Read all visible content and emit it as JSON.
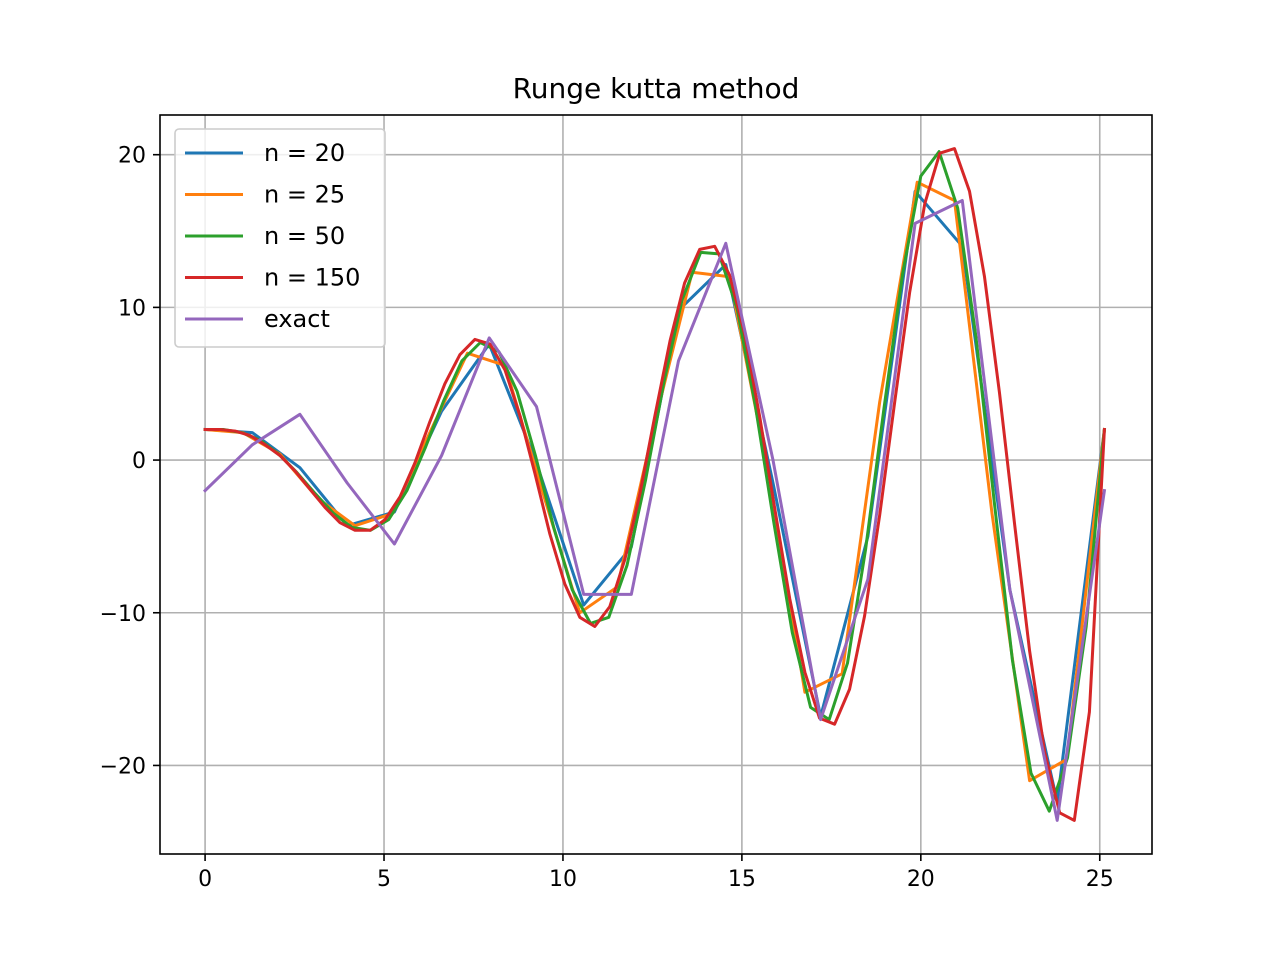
{
  "chart_data": {
    "type": "line",
    "title": "Runge kutta method",
    "xlabel": "",
    "ylabel": "",
    "xlim": [
      -1.26,
      26.46
    ],
    "ylim": [
      -25.8,
      22.6
    ],
    "xticks": [
      0,
      5,
      10,
      15,
      20,
      25
    ],
    "yticks": [
      -20,
      -10,
      0,
      10,
      20
    ],
    "xtick_labels": [
      "0",
      "5",
      "10",
      "15",
      "20",
      "25"
    ],
    "ytick_labels": [
      "−20",
      "−10",
      "0",
      "10",
      "20"
    ],
    "grid": true,
    "legend": "top-left",
    "series": [
      {
        "name": "n = 20",
        "color": "#1f77b4",
        "x": [
          0,
          1.32,
          2.65,
          3.97,
          5.29,
          6.61,
          7.94,
          9.26,
          10.58,
          11.91,
          13.23,
          14.55,
          15.87,
          17.2,
          18.52,
          19.84,
          21.16,
          22.49,
          23.81,
          25.13
        ],
        "y": [
          2.0,
          1.8,
          -0.5,
          -4.3,
          -3.4,
          3.2,
          7.6,
          -0.2,
          -9.5,
          -5.7,
          9.8,
          12.8,
          -1.5,
          -16.8,
          -5.0,
          17.6,
          14.0,
          -8.5,
          -22.4,
          2.0
        ]
      },
      {
        "name": "n = 25",
        "color": "#ff7f0e",
        "x": [
          0,
          1.05,
          2.09,
          3.14,
          4.19,
          5.24,
          6.28,
          7.33,
          8.38,
          9.42,
          10.47,
          11.52,
          12.57,
          13.61,
          14.66,
          15.71,
          16.76,
          17.8,
          18.85,
          19.9,
          20.94,
          21.99,
          23.04,
          24.08,
          25.13
        ],
        "y": [
          2.0,
          1.8,
          0.4,
          -2.5,
          -4.3,
          -3.5,
          1.8,
          7.0,
          6.2,
          -2.0,
          -10.0,
          -8.3,
          2.5,
          12.3,
          12.0,
          -0.5,
          -15.2,
          -14.0,
          3.8,
          18.2,
          17.0,
          -3.5,
          -21.0,
          -19.6,
          2.0
        ]
      },
      {
        "name": "n = 50",
        "color": "#2ca02c",
        "x": [
          0,
          0.51,
          1.03,
          1.54,
          2.05,
          2.56,
          3.08,
          3.59,
          4.1,
          4.62,
          5.13,
          5.64,
          6.15,
          6.67,
          7.18,
          7.69,
          8.21,
          8.72,
          9.23,
          9.74,
          10.26,
          10.77,
          11.28,
          11.79,
          12.31,
          12.82,
          13.33,
          13.85,
          14.36,
          14.87,
          15.38,
          15.9,
          16.41,
          16.92,
          17.44,
          17.95,
          18.46,
          18.97,
          19.49,
          20.0,
          20.51,
          21.03,
          21.54,
          22.05,
          22.56,
          23.08,
          23.59,
          24.1,
          24.62,
          25.13
        ],
        "y": [
          2.0,
          2.0,
          1.8,
          1.3,
          0.4,
          -0.8,
          -2.2,
          -3.5,
          -4.4,
          -4.6,
          -3.9,
          -2.0,
          0.8,
          3.9,
          6.5,
          7.7,
          7.1,
          4.5,
          0.3,
          -4.4,
          -8.5,
          -10.7,
          -10.3,
          -6.9,
          -1.3,
          5.1,
          10.5,
          13.6,
          13.5,
          9.9,
          3.5,
          -4.2,
          -11.3,
          -16.2,
          -17.0,
          -13.3,
          -5.8,
          3.4,
          12.2,
          18.6,
          20.2,
          16.5,
          8.1,
          -2.7,
          -13.1,
          -20.5,
          -23.0,
          -19.5,
          -10.9,
          2.0
        ]
      },
      {
        "name": "n = 150",
        "color": "#d62728",
        "x": [
          0,
          0.42,
          0.84,
          1.26,
          1.68,
          2.09,
          2.51,
          2.93,
          3.35,
          3.77,
          4.19,
          4.61,
          5.03,
          5.45,
          5.86,
          6.28,
          6.7,
          7.12,
          7.54,
          7.96,
          8.38,
          8.8,
          9.22,
          9.63,
          10.05,
          10.47,
          10.89,
          11.31,
          11.73,
          12.15,
          12.57,
          12.99,
          13.4,
          13.82,
          14.24,
          14.66,
          15.08,
          15.5,
          15.92,
          16.34,
          16.76,
          17.17,
          17.59,
          18.01,
          18.43,
          18.85,
          19.27,
          19.69,
          20.11,
          20.53,
          20.94,
          21.36,
          21.78,
          22.2,
          22.62,
          23.04,
          23.46,
          23.88,
          24.29,
          24.71,
          25.13
        ],
        "y": [
          2.0,
          2.0,
          1.9,
          1.6,
          1.0,
          0.3,
          -0.7,
          -1.9,
          -3.1,
          -4.1,
          -4.6,
          -4.6,
          -3.9,
          -2.4,
          -0.2,
          2.5,
          5.0,
          6.9,
          7.9,
          7.6,
          5.9,
          2.9,
          -0.9,
          -4.8,
          -8.1,
          -10.3,
          -10.9,
          -9.6,
          -6.5,
          -2.2,
          2.9,
          7.8,
          11.6,
          13.8,
          14.0,
          12.1,
          8.2,
          2.8,
          -3.2,
          -9.1,
          -13.9,
          -16.9,
          -17.3,
          -15.0,
          -10.2,
          -3.6,
          3.8,
          11.0,
          16.8,
          20.1,
          20.4,
          17.6,
          12.0,
          4.4,
          -4.2,
          -12.5,
          -19.1,
          -23.1,
          -23.6,
          -16.5,
          2.0
        ]
      },
      {
        "name": "exact",
        "color": "#9467bd",
        "x": [
          0,
          1.32,
          2.65,
          3.97,
          5.29,
          6.61,
          7.94,
          9.26,
          10.58,
          11.91,
          13.23,
          14.55,
          15.87,
          17.2,
          18.52,
          19.84,
          21.16,
          22.49,
          23.81,
          25.13
        ],
        "y": [
          -2.0,
          1.0,
          3.0,
          -1.5,
          -5.5,
          0.3,
          8.0,
          3.5,
          -8.8,
          -8.8,
          6.5,
          14.2,
          0.0,
          -17.0,
          -7.8,
          15.5,
          17.0,
          -8.5,
          -23.6,
          -2.0
        ]
      }
    ]
  }
}
